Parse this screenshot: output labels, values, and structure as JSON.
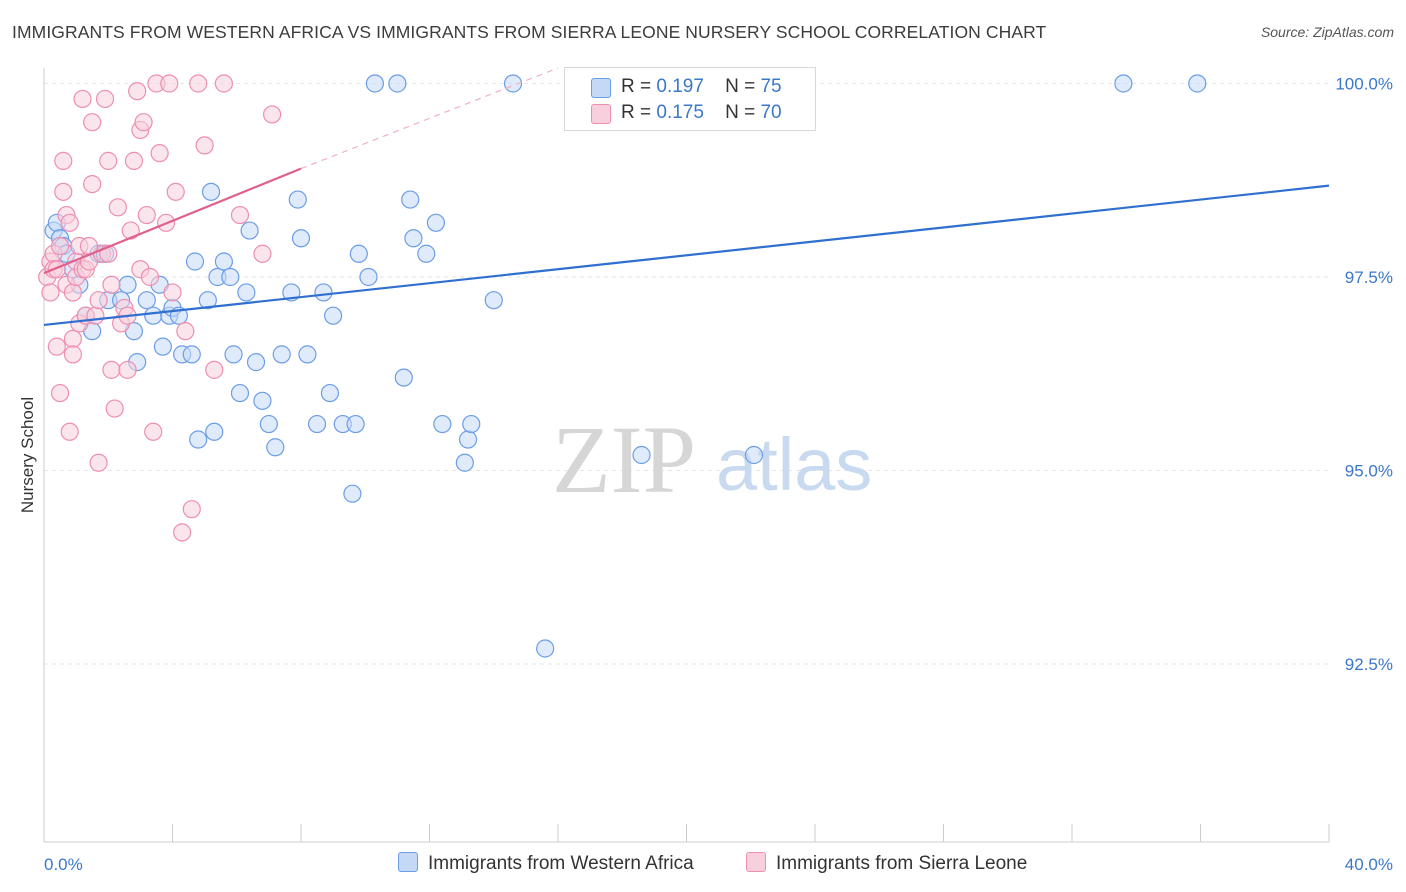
{
  "title": "IMMIGRANTS FROM WESTERN AFRICA VS IMMIGRANTS FROM SIERRA LEONE NURSERY SCHOOL CORRELATION CHART",
  "source": "Source: ZipAtlas.com",
  "watermark": {
    "zip": "ZIP",
    "atlas": "atlas"
  },
  "legend": {
    "rows": [
      {
        "r_label": "R =",
        "r_value": "0.197",
        "n_label": "N =",
        "n_value": "75"
      },
      {
        "r_label": "R =",
        "r_value": "0.175",
        "n_label": "N =",
        "n_value": "70"
      }
    ]
  },
  "chart_data": {
    "type": "scatter",
    "title": "IMMIGRANTS FROM WESTERN AFRICA VS IMMIGRANTS FROM SIERRA LEONE NURSERY SCHOOL CORRELATION CHART",
    "xlabel": "",
    "ylabel": "Nursery School",
    "xlim": [
      0,
      40
    ],
    "ylim": [
      90.2,
      100.2
    ],
    "x_tick_labels": [
      "0.0%",
      "40.0%"
    ],
    "y_ticks": [
      92.5,
      95.0,
      97.5,
      100.0
    ],
    "y_tick_labels": [
      "92.5%",
      "95.0%",
      "97.5%",
      "100.0%"
    ],
    "grid": true,
    "legend_position": "top-center",
    "series": [
      {
        "name": "Immigrants from Western Africa",
        "color": "#6b9de8",
        "fill": "#c5d8f5",
        "trend": {
          "x": [
            0,
            40
          ],
          "y": [
            96.88,
            98.68
          ],
          "color": "#2f6fd0"
        },
        "points": [
          [
            0.3,
            98.1
          ],
          [
            0.4,
            98.2
          ],
          [
            0.5,
            98.0
          ],
          [
            0.6,
            97.9
          ],
          [
            0.7,
            97.8
          ],
          [
            0.9,
            97.6
          ],
          [
            1.1,
            97.4
          ],
          [
            1.3,
            97.0
          ],
          [
            1.5,
            96.8
          ],
          [
            1.7,
            97.8
          ],
          [
            1.9,
            97.8
          ],
          [
            2.0,
            97.2
          ],
          [
            2.4,
            97.2
          ],
          [
            2.6,
            97.4
          ],
          [
            2.8,
            96.8
          ],
          [
            2.9,
            96.4
          ],
          [
            3.2,
            97.2
          ],
          [
            3.4,
            97.0
          ],
          [
            3.6,
            97.4
          ],
          [
            3.7,
            96.6
          ],
          [
            3.9,
            97.0
          ],
          [
            4.0,
            97.1
          ],
          [
            4.2,
            97.0
          ],
          [
            4.3,
            96.5
          ],
          [
            4.6,
            96.5
          ],
          [
            4.7,
            97.7
          ],
          [
            4.8,
            95.4
          ],
          [
            5.1,
            97.2
          ],
          [
            5.2,
            98.6
          ],
          [
            5.3,
            95.5
          ],
          [
            5.4,
            97.5
          ],
          [
            5.6,
            97.7
          ],
          [
            5.8,
            97.5
          ],
          [
            5.9,
            96.5
          ],
          [
            6.1,
            96.0
          ],
          [
            6.3,
            97.3
          ],
          [
            6.4,
            98.1
          ],
          [
            6.6,
            96.4
          ],
          [
            6.8,
            95.9
          ],
          [
            7.0,
            95.6
          ],
          [
            7.2,
            95.3
          ],
          [
            7.4,
            96.5
          ],
          [
            7.7,
            97.3
          ],
          [
            7.9,
            98.5
          ],
          [
            8.0,
            98.0
          ],
          [
            8.2,
            96.5
          ],
          [
            8.5,
            95.6
          ],
          [
            8.7,
            97.3
          ],
          [
            8.9,
            96.0
          ],
          [
            9.0,
            97.0
          ],
          [
            9.3,
            95.6
          ],
          [
            9.6,
            94.7
          ],
          [
            9.7,
            95.6
          ],
          [
            9.8,
            97.8
          ],
          [
            10.1,
            97.5
          ],
          [
            10.3,
            100.0
          ],
          [
            11.0,
            100.0
          ],
          [
            11.2,
            96.2
          ],
          [
            11.4,
            98.5
          ],
          [
            11.5,
            98.0
          ],
          [
            11.9,
            97.8
          ],
          [
            12.2,
            98.2
          ],
          [
            12.4,
            95.6
          ],
          [
            13.1,
            95.1
          ],
          [
            13.2,
            95.4
          ],
          [
            13.3,
            95.6
          ],
          [
            14.0,
            97.2
          ],
          [
            14.6,
            100.0
          ],
          [
            15.6,
            92.7
          ],
          [
            16.5,
            100.0
          ],
          [
            17.0,
            100.0
          ],
          [
            18.6,
            95.2
          ],
          [
            22.1,
            95.2
          ],
          [
            33.6,
            100.0
          ],
          [
            35.9,
            100.0
          ]
        ]
      },
      {
        "name": "Immigrants from Sierra Leone",
        "color": "#ee8eb0",
        "fill": "#f8cfdd",
        "trend": {
          "x": [
            0,
            8
          ],
          "y": [
            97.55,
            98.9
          ],
          "color": "#e0608c"
        },
        "trend_extension": {
          "x": [
            8,
            16
          ],
          "y": [
            98.9,
            100.2
          ]
        },
        "points": [
          [
            0.1,
            97.5
          ],
          [
            0.2,
            97.3
          ],
          [
            0.2,
            97.7
          ],
          [
            0.3,
            97.8
          ],
          [
            0.3,
            97.6
          ],
          [
            0.4,
            97.6
          ],
          [
            0.4,
            96.6
          ],
          [
            0.5,
            97.9
          ],
          [
            0.5,
            96.0
          ],
          [
            0.6,
            98.6
          ],
          [
            0.6,
            99.0
          ],
          [
            0.7,
            98.3
          ],
          [
            0.7,
            97.4
          ],
          [
            0.8,
            98.2
          ],
          [
            0.8,
            95.5
          ],
          [
            0.9,
            96.7
          ],
          [
            0.9,
            97.3
          ],
          [
            1.0,
            97.5
          ],
          [
            1.0,
            97.7
          ],
          [
            1.1,
            97.9
          ],
          [
            1.1,
            96.9
          ],
          [
            1.2,
            97.6
          ],
          [
            1.2,
            99.8
          ],
          [
            1.3,
            97.6
          ],
          [
            1.3,
            97.0
          ],
          [
            1.4,
            97.7
          ],
          [
            1.5,
            98.7
          ],
          [
            1.5,
            99.5
          ],
          [
            1.6,
            97.0
          ],
          [
            1.7,
            95.1
          ],
          [
            1.8,
            97.8
          ],
          [
            1.9,
            99.8
          ],
          [
            2.0,
            99.0
          ],
          [
            2.0,
            97.8
          ],
          [
            2.1,
            97.4
          ],
          [
            2.1,
            96.3
          ],
          [
            2.2,
            95.8
          ],
          [
            2.3,
            98.4
          ],
          [
            2.4,
            96.9
          ],
          [
            2.5,
            97.1
          ],
          [
            2.6,
            97.0
          ],
          [
            2.7,
            98.1
          ],
          [
            2.8,
            99.0
          ],
          [
            2.9,
            99.9
          ],
          [
            3.0,
            99.4
          ],
          [
            3.0,
            97.6
          ],
          [
            3.1,
            99.5
          ],
          [
            3.2,
            98.3
          ],
          [
            3.3,
            97.5
          ],
          [
            3.4,
            95.5
          ],
          [
            3.5,
            100.0
          ],
          [
            3.6,
            99.1
          ],
          [
            3.8,
            98.2
          ],
          [
            3.9,
            100.0
          ],
          [
            4.0,
            97.3
          ],
          [
            4.1,
            98.6
          ],
          [
            4.3,
            94.2
          ],
          [
            4.4,
            96.8
          ],
          [
            4.6,
            94.5
          ],
          [
            4.8,
            100.0
          ],
          [
            5.0,
            99.2
          ],
          [
            5.3,
            96.3
          ],
          [
            5.6,
            100.0
          ],
          [
            6.1,
            98.3
          ],
          [
            6.8,
            97.8
          ],
          [
            7.1,
            99.6
          ],
          [
            1.4,
            97.9
          ],
          [
            0.9,
            96.5
          ],
          [
            1.7,
            97.2
          ],
          [
            2.6,
            96.3
          ]
        ]
      }
    ]
  }
}
